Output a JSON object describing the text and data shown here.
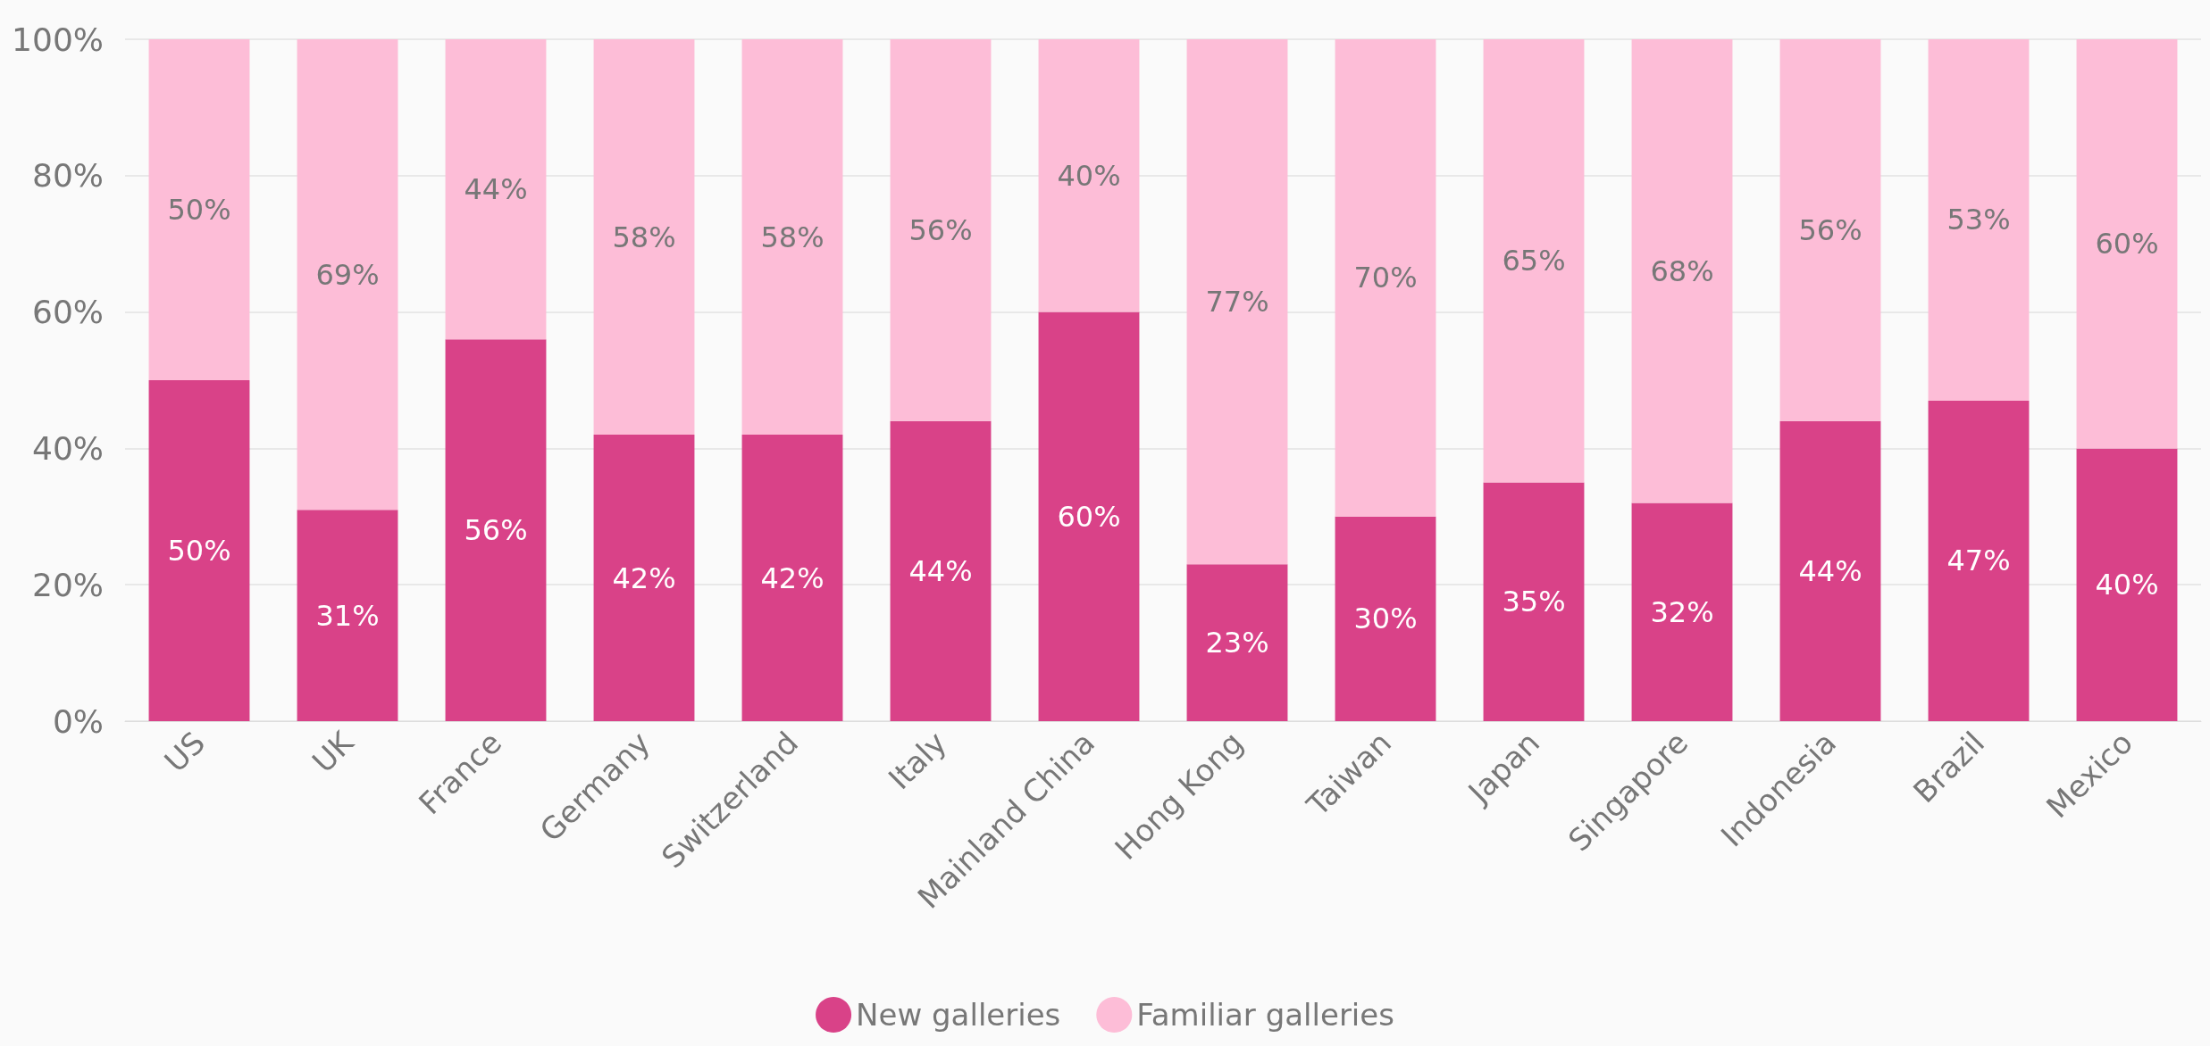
{
  "chart_data": {
    "type": "bar",
    "stacked": true,
    "categories": [
      "US",
      "UK",
      "France",
      "Germany",
      "Switzerland",
      "Italy",
      "Mainland China",
      "Hong Kong",
      "Taiwan",
      "Japan",
      "Singapore",
      "Indonesia",
      "Brazil",
      "Mexico"
    ],
    "series": [
      {
        "name": "New galleries",
        "color": "#d94288",
        "values": [
          50,
          31,
          56,
          42,
          42,
          44,
          60,
          23,
          30,
          35,
          32,
          44,
          47,
          40
        ],
        "value_labels": [
          "50%",
          "31%",
          "56%",
          "42%",
          "42%",
          "44%",
          "60%",
          "23%",
          "30%",
          "35%",
          "32%",
          "44%",
          "47%",
          "40%"
        ]
      },
      {
        "name": "Familiar galleries",
        "color": "#fdbdd7",
        "values": [
          50,
          69,
          44,
          58,
          58,
          56,
          40,
          77,
          70,
          65,
          68,
          56,
          53,
          60
        ],
        "value_labels": [
          "50%",
          "69%",
          "44%",
          "58%",
          "58%",
          "56%",
          "40%",
          "77%",
          "70%",
          "65%",
          "68%",
          "56%",
          "53%",
          "60%"
        ]
      }
    ],
    "ylim": [
      0,
      100
    ],
    "yticks": [
      {
        "value": 0,
        "label": "0%"
      },
      {
        "value": 20,
        "label": "20%"
      },
      {
        "value": 40,
        "label": "40%"
      },
      {
        "value": 60,
        "label": "60%"
      },
      {
        "value": 80,
        "label": "80%"
      },
      {
        "value": 100,
        "label": "100%"
      }
    ],
    "grid": true,
    "legend": "bottom"
  }
}
